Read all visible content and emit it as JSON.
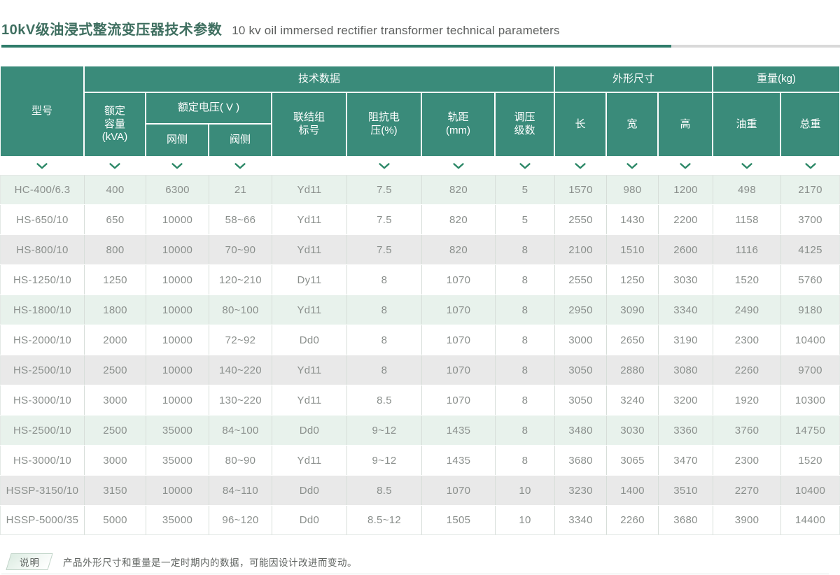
{
  "title": {
    "zh": "10kV级油浸式整流变压器技术参数",
    "en": "10 kv oil immersed rectifier transformer technical parameters"
  },
  "table": {
    "group_headers": {
      "tech": "技术数据",
      "dimensions": "外形尺寸",
      "weight": "重量(kg)"
    },
    "voltage_group_label": "额定电压( V )",
    "columns": [
      {
        "id": "model",
        "label": "型号",
        "chevron": true
      },
      {
        "id": "capacity",
        "label": "额定\n容量\n(kVA)",
        "chevron": true
      },
      {
        "id": "grid-side",
        "label": "网侧",
        "chevron": true
      },
      {
        "id": "valve-side",
        "label": "阀侧",
        "chevron": true
      },
      {
        "id": "vector-group",
        "label": "联结组\n标号",
        "chevron": false
      },
      {
        "id": "impedance",
        "label": "阻抗电\n压(%)",
        "chevron": true
      },
      {
        "id": "track-gauge",
        "label": "轨距\n(mm)",
        "chevron": true
      },
      {
        "id": "tap-steps",
        "label": "调压\n级数",
        "chevron": true
      },
      {
        "id": "length",
        "label": "长",
        "chevron": true
      },
      {
        "id": "width",
        "label": "宽",
        "chevron": true
      },
      {
        "id": "height",
        "label": "高",
        "chevron": true
      },
      {
        "id": "oil-weight",
        "label": "油重",
        "chevron": true
      },
      {
        "id": "total-weight",
        "label": "总重",
        "chevron": true
      }
    ],
    "rows": [
      [
        "HC-400/6.3",
        "400",
        "6300",
        "21",
        "Yd11",
        "7.5",
        "820",
        "5",
        "1570",
        "980",
        "1200",
        "498",
        "2170"
      ],
      [
        "HS-650/10",
        "650",
        "10000",
        "58~66",
        "Yd11",
        "7.5",
        "820",
        "5",
        "2550",
        "1430",
        "2200",
        "1158",
        "3700"
      ],
      [
        "HS-800/10",
        "800",
        "10000",
        "70~90",
        "Yd11",
        "7.5",
        "820",
        "8",
        "2100",
        "1510",
        "2600",
        "1116",
        "4125"
      ],
      [
        "HS-1250/10",
        "1250",
        "10000",
        "120~210",
        "Dy11",
        "8",
        "1070",
        "8",
        "2550",
        "1250",
        "3030",
        "1520",
        "5760"
      ],
      [
        "HS-1800/10",
        "1800",
        "10000",
        "80~100",
        "Yd11",
        "8",
        "1070",
        "8",
        "2950",
        "3090",
        "3340",
        "2490",
        "9180"
      ],
      [
        "HS-2000/10",
        "2000",
        "10000",
        "72~92",
        "Dd0",
        "8",
        "1070",
        "8",
        "3000",
        "2650",
        "3190",
        "2300",
        "10400"
      ],
      [
        "HS-2500/10",
        "2500",
        "10000",
        "140~220",
        "Yd11",
        "8",
        "1070",
        "8",
        "3050",
        "2880",
        "3080",
        "2260",
        "9700"
      ],
      [
        "HS-3000/10",
        "3000",
        "10000",
        "130~220",
        "Yd11",
        "8.5",
        "1070",
        "8",
        "3050",
        "3240",
        "3200",
        "1920",
        "10300"
      ],
      [
        "HS-2500/10",
        "2500",
        "35000",
        "84~100",
        "Dd0",
        "9~12",
        "1435",
        "8",
        "3480",
        "3030",
        "3360",
        "3760",
        "14750"
      ],
      [
        "HS-3000/10",
        "3000",
        "35000",
        "80~90",
        "Yd11",
        "9~12",
        "1435",
        "8",
        "3680",
        "3065",
        "3470",
        "2300",
        "1520"
      ],
      [
        "HSSP-3150/10",
        "3150",
        "10000",
        "84~110",
        "Dd0",
        "8.5",
        "1070",
        "10",
        "3230",
        "1400",
        "3510",
        "2270",
        "10400"
      ],
      [
        "HSSP-5000/35",
        "5000",
        "35000",
        "96~120",
        "Dd0",
        "8.5~12",
        "1505",
        "10",
        "3340",
        "2260",
        "3680",
        "3900",
        "14400"
      ]
    ]
  },
  "footer": {
    "badge": "说明",
    "note": "产品外形尺寸和重量是一定时期内的数据，可能因设计改进而变动。"
  },
  "icons": {
    "chevron_down": "chevron-down-icon"
  },
  "colors": {
    "header_green": "#3a8b7a",
    "accent_line": "#2f7c6a",
    "row_green": "#e8f2ec",
    "row_gray": "#e9e9e9",
    "chevron_green": "#2a8766",
    "text_gray": "#8a8f8c",
    "title_green": "#3f6f60"
  }
}
